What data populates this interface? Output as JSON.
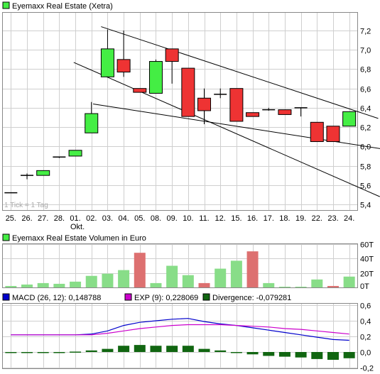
{
  "colors": {
    "up": "#44ee44",
    "down": "#ee3333",
    "volume_up": "#88dd88",
    "volume_down": "#dd7070",
    "macd_line": "#0000cc",
    "exp_line": "#cc00cc",
    "divergence": "#116611",
    "grid": "#cfcfcf",
    "trendline": "#000000"
  },
  "chart_data": [
    {
      "type": "candlestick",
      "title": "Eyemaxx Real Estate (Xetra)",
      "legend_icon": "green-square-icon",
      "x_labels": [
        "25.",
        "26.",
        "27.",
        "28.",
        "01.",
        "02.",
        "03.",
        "04.",
        "05.",
        "08.",
        "09.",
        "10.",
        "11.",
        "12.",
        "15.",
        "16.",
        "17.",
        "18.",
        "19.",
        "22.",
        "23.",
        "24."
      ],
      "x_sublabel": {
        "index": 4,
        "text": "Okt."
      },
      "y_ticks": [
        "7,2",
        "7,0",
        "6,8",
        "6,6",
        "6,4",
        "6,2",
        "6,0",
        "5,8",
        "5,6",
        "5,4"
      ],
      "y_tick_values": [
        7.2,
        7.0,
        6.8,
        6.6,
        6.4,
        6.2,
        6.0,
        5.8,
        5.6,
        5.4
      ],
      "ylim": [
        5.4,
        7.2
      ],
      "note": "1 Tick = 1 Tag",
      "candles": [
        {
          "o": 5.52,
          "c": 5.52,
          "h": 5.52,
          "l": 5.52
        },
        {
          "o": 5.7,
          "c": 5.7,
          "h": 5.72,
          "l": 5.66
        },
        {
          "o": 5.7,
          "c": 5.75,
          "h": 5.75,
          "l": 5.7
        },
        {
          "o": 5.88,
          "c": 5.89,
          "h": 5.89,
          "l": 5.88
        },
        {
          "o": 5.9,
          "c": 5.96,
          "h": 5.96,
          "l": 5.9
        },
        {
          "o": 6.14,
          "c": 6.34,
          "h": 6.46,
          "l": 6.14
        },
        {
          "o": 6.72,
          "c": 7.01,
          "h": 7.21,
          "l": 6.72
        },
        {
          "o": 6.9,
          "c": 6.77,
          "h": 7.2,
          "l": 6.72
        },
        {
          "o": 6.6,
          "c": 6.56,
          "h": 6.6,
          "l": 6.56
        },
        {
          "o": 6.55,
          "c": 6.88,
          "h": 6.9,
          "l": 6.55
        },
        {
          "o": 7.01,
          "c": 6.88,
          "h": 7.01,
          "l": 6.65
        },
        {
          "o": 6.81,
          "c": 6.31,
          "h": 6.81,
          "l": 6.31
        },
        {
          "o": 6.5,
          "c": 6.37,
          "h": 6.6,
          "l": 6.23
        },
        {
          "o": 6.54,
          "c": 6.54,
          "h": 6.6,
          "l": 6.5
        },
        {
          "o": 6.6,
          "c": 6.26,
          "h": 6.6,
          "l": 6.26
        },
        {
          "o": 6.35,
          "c": 6.31,
          "h": 6.35,
          "l": 6.31
        },
        {
          "o": 6.38,
          "c": 6.38,
          "h": 6.4,
          "l": 6.37
        },
        {
          "o": 6.38,
          "c": 6.33,
          "h": 6.38,
          "l": 6.33
        },
        {
          "o": 6.4,
          "c": 6.4,
          "h": 6.4,
          "l": 6.31
        },
        {
          "o": 6.25,
          "c": 6.05,
          "h": 6.25,
          "l": 6.05
        },
        {
          "o": 6.21,
          "c": 6.05,
          "h": 6.21,
          "l": 6.05
        },
        {
          "o": 6.21,
          "c": 6.36,
          "h": 6.36,
          "l": 6.21
        }
      ],
      "trendlines": [
        {
          "x1": 6.1,
          "y1": 7.24,
          "x2": 23.3,
          "y2": 6.29
        },
        {
          "x1": 4.4,
          "y1": 6.87,
          "x2": 23.4,
          "y2": 5.48
        },
        {
          "x1": 5.6,
          "y1": 6.44,
          "x2": 24.1,
          "y2": 5.96
        }
      ]
    },
    {
      "type": "bar",
      "title": "Eyemaxx Real Estate Volumen in Euro",
      "legend_icon": "green-square-icon",
      "y_ticks": [
        "60T",
        "40T",
        "20T",
        "0T"
      ],
      "y_tick_values": [
        60,
        40,
        20,
        0
      ],
      "ylim": [
        0,
        60
      ],
      "values": [
        2,
        4,
        6,
        5,
        8,
        16,
        19,
        24,
        48,
        6,
        30,
        17,
        6,
        26,
        37,
        50,
        6,
        0,
        0,
        11,
        2,
        15
      ],
      "directions": [
        "up",
        "up",
        "up",
        "up",
        "up",
        "up",
        "up",
        "up",
        "down",
        "up",
        "up",
        "up",
        "down",
        "up",
        "up",
        "down",
        "up",
        "up",
        "up",
        "up",
        "down",
        "up"
      ]
    },
    {
      "type": "line",
      "legend": [
        {
          "label": "MACD (26, 12): 0,148788",
          "color_key": "macd_line"
        },
        {
          "label": "EXP (9): 0,228069",
          "color_key": "exp_line"
        },
        {
          "label": "Divergence: -0,079281",
          "color_key": "divergence"
        }
      ],
      "y_ticks": [
        "0,6",
        "0,4",
        "0,2",
        "0,0",
        "-0,2"
      ],
      "y_tick_values": [
        0.6,
        0.4,
        0.2,
        0.0,
        -0.2
      ],
      "ylim": [
        -0.2,
        0.6
      ],
      "series": [
        {
          "name": "MACD (26, 12)",
          "color_key": "macd_line",
          "values": [
            0.22,
            0.22,
            0.22,
            0.22,
            0.22,
            0.23,
            0.27,
            0.34,
            0.38,
            0.4,
            0.42,
            0.43,
            0.39,
            0.36,
            0.34,
            0.31,
            0.28,
            0.25,
            0.22,
            0.19,
            0.16,
            0.15
          ]
        },
        {
          "name": "EXP (9)",
          "color_key": "exp_line",
          "values": [
            0.22,
            0.22,
            0.22,
            0.22,
            0.22,
            0.22,
            0.24,
            0.27,
            0.3,
            0.32,
            0.34,
            0.35,
            0.35,
            0.35,
            0.34,
            0.33,
            0.32,
            0.3,
            0.29,
            0.27,
            0.25,
            0.23
          ]
        }
      ],
      "divergence": [
        -0.01,
        -0.01,
        -0.01,
        -0.01,
        0.005,
        0.02,
        0.04,
        0.08,
        0.09,
        0.08,
        0.08,
        0.08,
        0.04,
        0.02,
        0.0,
        -0.03,
        -0.05,
        -0.06,
        -0.07,
        -0.09,
        -0.1,
        -0.08
      ]
    }
  ]
}
